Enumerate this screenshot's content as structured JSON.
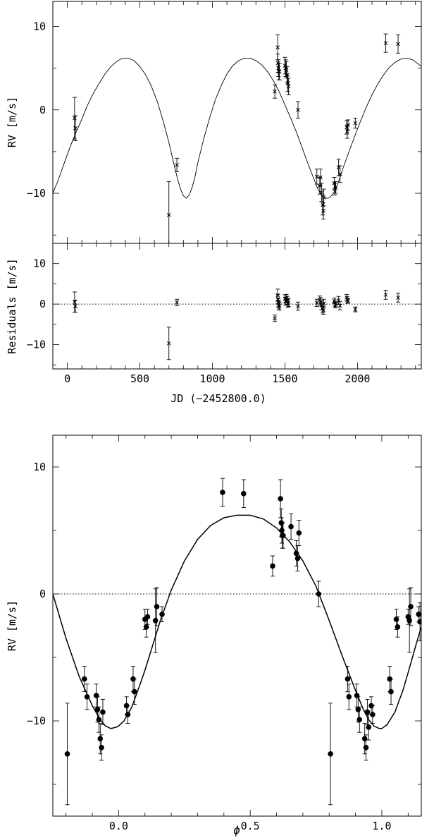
{
  "chart_data": [
    {
      "type": "scatter",
      "panel": "top",
      "xlim": [
        -100,
        2440
      ],
      "ylim": [
        -16,
        13
      ],
      "xticks": [
        0,
        500,
        1000,
        1500,
        2000
      ],
      "xtick_labels": [],
      "yticks": [
        -10,
        0,
        10
      ],
      "ytick_labels": [
        "−10",
        "0",
        "10"
      ],
      "ylabel": "RV [m/s]",
      "xlabel": "",
      "marker": "cross",
      "curve_period": 955,
      "curve_phase0": 1795,
      "fit_curve_x": [
        -100,
        -60,
        -20,
        20,
        60,
        100,
        140,
        180,
        220,
        260,
        300,
        340,
        380,
        420,
        460,
        500,
        540,
        580,
        620,
        660,
        700,
        740,
        760,
        780,
        800,
        820,
        840,
        860,
        880,
        900,
        940,
        980,
        1020,
        1060,
        1100,
        1140,
        1180,
        1220,
        1260,
        1300,
        1340,
        1380,
        1420,
        1460,
        1500,
        1540,
        1580,
        1620,
        1660,
        1700,
        1720,
        1740,
        1760,
        1780,
        1795,
        1810,
        1830,
        1850,
        1870,
        1900,
        1940,
        1980,
        2020,
        2060,
        2100,
        2140,
        2180,
        2220,
        2260,
        2300,
        2340,
        2380,
        2420,
        2440
      ],
      "fit_curve_y": [
        -10.0,
        -8.3,
        -6.3,
        -4.4,
        -2.7,
        -1.1,
        0.6,
        2.0,
        3.2,
        4.3,
        5.2,
        5.8,
        6.2,
        6.2,
        5.9,
        5.2,
        4.2,
        2.8,
        1.0,
        -1.3,
        -3.9,
        -6.9,
        -8.3,
        -9.5,
        -10.3,
        -10.6,
        -10.2,
        -9.3,
        -8.0,
        -6.3,
        -3.5,
        -1.0,
        1.2,
        2.9,
        4.3,
        5.3,
        5.9,
        6.2,
        6.2,
        5.9,
        5.4,
        4.6,
        3.5,
        2.2,
        0.6,
        -1.0,
        -2.7,
        -4.6,
        -6.5,
        -8.3,
        -9.2,
        -9.9,
        -10.4,
        -10.6,
        -10.6,
        -10.5,
        -10.1,
        -9.5,
        -8.6,
        -7.0,
        -5.1,
        -3.2,
        -1.4,
        0.3,
        1.8,
        3.1,
        4.2,
        5.1,
        5.7,
        6.1,
        6.2,
        6.0,
        5.5,
        5.2
      ],
      "x": [
        50,
        55,
        700,
        755,
        1430,
        1450,
        1452,
        1455,
        1458,
        1462,
        1500,
        1505,
        1510,
        1515,
        1520,
        1525,
        1590,
        1720,
        1740,
        1745,
        1752,
        1760,
        1765,
        1768,
        1840,
        1845,
        1850,
        1870,
        1880,
        1925,
        1930,
        1935,
        1985,
        2195,
        2280
      ],
      "y": [
        -1.0,
        -2.2,
        -12.6,
        -6.6,
        2.2,
        7.5,
        5.6,
        5.0,
        4.6,
        4.6,
        5.3,
        5.0,
        4.8,
        4.2,
        3.2,
        2.8,
        0.0,
        -8.0,
        -9.1,
        -8.1,
        -9.9,
        -11.4,
        -12.1,
        -10.5,
        -8.8,
        -9.5,
        -9.3,
        -6.9,
        -7.7,
        -2.1,
        -2.6,
        -1.8,
        -1.6,
        8.0,
        7.9
      ],
      "yerr": [
        2.5,
        1.5,
        4.0,
        0.8,
        0.8,
        1.5,
        1.1,
        1.0,
        1.0,
        1.0,
        1.0,
        1.0,
        1.0,
        1.0,
        1.0,
        1.0,
        1.0,
        0.9,
        1.0,
        1.0,
        1.1,
        1.2,
        1.0,
        1.0,
        0.7,
        0.7,
        0.7,
        1.0,
        1.0,
        0.8,
        0.8,
        0.6,
        0.6,
        1.1,
        1.1
      ]
    },
    {
      "type": "scatter",
      "panel": "residuals",
      "xlim": [
        -100,
        2440
      ],
      "ylim": [
        -16,
        15
      ],
      "xticks": [
        0,
        500,
        1000,
        1500,
        2000
      ],
      "xtick_labels": [
        "0",
        "500",
        "1000",
        "1500",
        "2000"
      ],
      "yticks": [
        -10,
        0,
        10
      ],
      "ytick_labels": [
        "−10",
        "0",
        "10"
      ],
      "ylabel": "Residuals [m/s]",
      "xlabel": "JD (−2452800.0)",
      "marker": "cross",
      "zero_line": "dotted",
      "x": [
        50,
        55,
        700,
        755,
        1430,
        1450,
        1452,
        1455,
        1458,
        1462,
        1500,
        1505,
        1510,
        1515,
        1520,
        1525,
        1590,
        1720,
        1740,
        1745,
        1752,
        1760,
        1765,
        1768,
        1840,
        1845,
        1850,
        1870,
        1880,
        1925,
        1930,
        1935,
        1985,
        2195,
        2280
      ],
      "y": [
        0.5,
        -0.5,
        -9.7,
        0.4,
        -3.5,
        2.2,
        1.2,
        0.3,
        -0.2,
        -0.5,
        1.3,
        0.7,
        1.4,
        0.9,
        0.2,
        0.4,
        -0.5,
        0.3,
        1.0,
        0.6,
        -0.3,
        -1.0,
        -1.5,
        0.2,
        0.8,
        0.0,
        -0.2,
        0.9,
        -0.4,
        1.6,
        1.0,
        0.8,
        -1.3,
        2.3,
        1.6
      ],
      "yerr": [
        2.5,
        1.5,
        4.0,
        0.8,
        0.8,
        1.5,
        1.1,
        1.0,
        1.0,
        1.0,
        1.0,
        1.0,
        1.0,
        1.0,
        1.0,
        1.0,
        1.0,
        0.9,
        1.0,
        1.0,
        1.1,
        1.2,
        1.0,
        1.0,
        0.7,
        0.7,
        0.7,
        1.0,
        1.0,
        0.8,
        0.8,
        0.6,
        0.6,
        1.1,
        1.1
      ]
    },
    {
      "type": "scatter",
      "panel": "phase",
      "xlim": [
        -0.25,
        1.15
      ],
      "ylim": [
        -17.5,
        12.5
      ],
      "xticks": [
        0.0,
        0.5,
        1.0
      ],
      "xtick_labels": [
        "0.0",
        "0.5",
        "1.0"
      ],
      "minor_xticks": [
        -0.2,
        -0.1,
        0.1,
        0.2,
        0.3,
        0.4,
        0.6,
        0.7,
        0.8,
        0.9,
        1.1
      ],
      "yticks": [
        -10,
        0,
        10
      ],
      "ytick_labels": [
        "−10",
        "0",
        "10"
      ],
      "ylabel": "RV [m/s]",
      "xlabel": "ϕ",
      "marker": "filled-circle",
      "zero_line": "dotted",
      "fit_curve_x": [
        -0.25,
        -0.2,
        -0.15,
        -0.1,
        -0.07,
        -0.05,
        -0.03,
        -0.01,
        0.0,
        0.02,
        0.05,
        0.08,
        0.1,
        0.13,
        0.16,
        0.2,
        0.25,
        0.3,
        0.35,
        0.4,
        0.45,
        0.5,
        0.55,
        0.6,
        0.65,
        0.7,
        0.75,
        0.8,
        0.85,
        0.9,
        0.93,
        0.95,
        0.97,
        0.99,
        1.0,
        1.02,
        1.05,
        1.08,
        1.1,
        1.13,
        1.15
      ],
      "fit_curve_y": [
        0.0,
        -3.5,
        -6.5,
        -8.8,
        -9.9,
        -10.4,
        -10.6,
        -10.5,
        -10.4,
        -10.0,
        -8.9,
        -7.2,
        -6.0,
        -4.0,
        -2.0,
        0.3,
        2.6,
        4.3,
        5.4,
        6.0,
        6.2,
        6.2,
        5.9,
        5.2,
        4.1,
        2.6,
        0.6,
        -2.1,
        -4.9,
        -7.6,
        -9.1,
        -9.9,
        -10.4,
        -10.6,
        -10.6,
        -10.3,
        -9.3,
        -7.6,
        -6.2,
        -4.0,
        -2.6
      ],
      "x": [
        -0.195,
        -0.13,
        -0.12,
        -0.085,
        -0.08,
        -0.075,
        -0.07,
        -0.065,
        -0.06,
        0.03,
        0.035,
        0.055,
        0.06,
        0.1,
        0.105,
        0.11,
        0.14,
        0.145,
        0.165,
        0.395,
        0.475,
        0.585,
        0.615,
        0.618,
        0.62,
        0.622,
        0.625,
        0.655,
        0.675,
        0.68,
        0.685,
        0.76,
        0.805,
        0.87,
        0.875,
        0.905,
        0.91,
        0.915,
        0.935,
        0.94,
        0.945,
        0.95,
        0.96,
        0.965,
        1.03,
        1.035,
        1.055,
        1.06,
        1.1,
        1.105,
        1.11,
        1.14,
        1.145
      ],
      "y": [
        -12.6,
        -6.7,
        -8.1,
        -8.0,
        -9.1,
        -9.9,
        -11.4,
        -12.1,
        -9.3,
        -8.8,
        -9.5,
        -6.7,
        -7.7,
        -2.0,
        -2.6,
        -1.8,
        -2.1,
        -1.0,
        -1.6,
        8.0,
        7.9,
        2.2,
        7.5,
        5.6,
        5.0,
        4.6,
        4.6,
        5.3,
        3.2,
        2.8,
        4.8,
        0.0,
        -12.6,
        -6.7,
        -8.1,
        -8.0,
        -9.1,
        -9.9,
        -11.4,
        -12.1,
        -9.3,
        -10.5,
        -8.8,
        -9.5,
        -6.7,
        -7.7,
        -2.0,
        -2.6,
        -1.8,
        -2.1,
        -1.0,
        -1.6,
        -2.2
      ],
      "yerr": [
        4.0,
        1.0,
        1.0,
        0.9,
        1.0,
        1.0,
        1.2,
        1.0,
        1.0,
        0.7,
        0.7,
        1.0,
        1.0,
        0.8,
        0.8,
        0.6,
        2.5,
        1.5,
        0.6,
        1.1,
        1.1,
        0.8,
        1.5,
        1.1,
        1.0,
        1.0,
        1.0,
        1.0,
        1.0,
        1.0,
        1.0,
        1.0,
        4.0,
        1.0,
        1.0,
        0.9,
        1.0,
        1.0,
        1.2,
        1.0,
        1.0,
        1.0,
        0.7,
        0.7,
        1.0,
        1.0,
        0.8,
        0.8,
        0.6,
        2.5,
        1.5,
        0.6,
        1.5
      ]
    }
  ]
}
